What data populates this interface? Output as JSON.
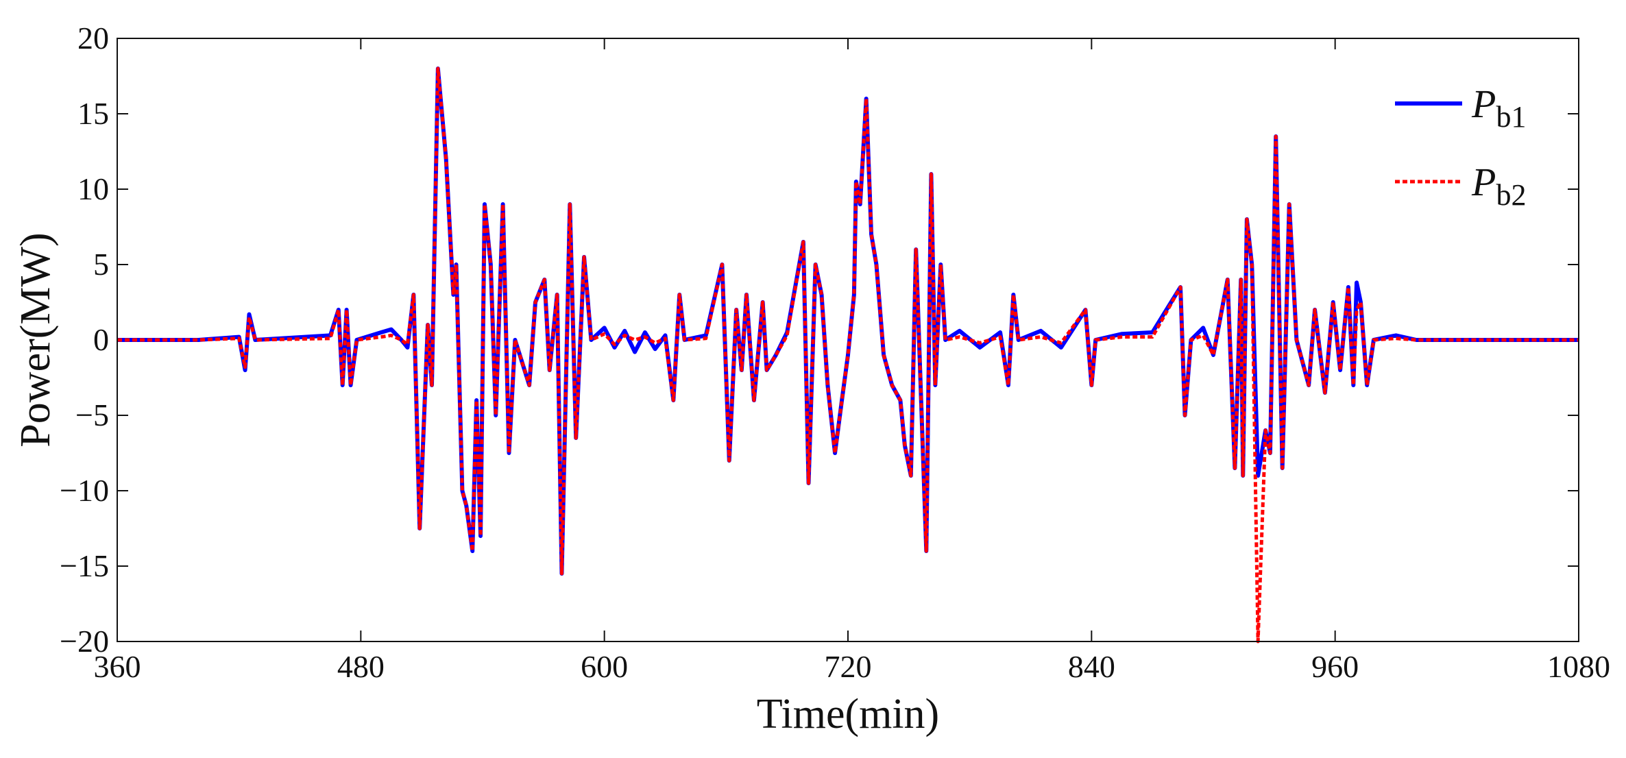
{
  "chart_data": {
    "type": "line",
    "x_label": "Time(min)",
    "y_label": "Power(MW)",
    "xlim": [
      360,
      1080
    ],
    "xticks": [
      360,
      480,
      600,
      720,
      840,
      960,
      1080
    ],
    "ylim": [
      -20,
      20
    ],
    "yticks": [
      {
        "value": -20,
        "label": "−20"
      },
      {
        "value": -15,
        "label": "−15"
      },
      {
        "value": -10,
        "label": "−10"
      },
      {
        "value": -5,
        "label": "−5"
      },
      0,
      5,
      10,
      15,
      20
    ],
    "legend": "upper right",
    "x": [
      360,
      400,
      420,
      423,
      425,
      428,
      465,
      469,
      471,
      473,
      475,
      478,
      490,
      495,
      500,
      503,
      506,
      509,
      513,
      515,
      518,
      522,
      525.6,
      527,
      530,
      532,
      535,
      537,
      539,
      541,
      544,
      546.5,
      550,
      553,
      556,
      563,
      566,
      570.5,
      573,
      576.7,
      579,
      583,
      586,
      590,
      593.5,
      600,
      605,
      610,
      615,
      620,
      625,
      630,
      634,
      637,
      639.5,
      650,
      658,
      661.5,
      665,
      667.6,
      670,
      673.7,
      678,
      680,
      684.5,
      690,
      698,
      700.6,
      704,
      707,
      710,
      713.6,
      717,
      720,
      723,
      724,
      726,
      729,
      731.5,
      734,
      737.6,
      741.7,
      745.8,
      748,
      751,
      753.5,
      758.6,
      761,
      763,
      765.7,
      768,
      775,
      785,
      795,
      799,
      801.5,
      804,
      815,
      825,
      837,
      840,
      842,
      855,
      870,
      883.8,
      886,
      889,
      895,
      900,
      907,
      910.6,
      913.6,
      914.6,
      916.5,
      919,
      922,
      925.7,
      928,
      930.8,
      934,
      937.4,
      941,
      947,
      950,
      952.7,
      955,
      959,
      962.5,
      966.5,
      969,
      970.6,
      972.6,
      975.7,
      979,
      990,
      1000,
      1080
    ],
    "series": [
      {
        "name": "Pb1",
        "color": "#0000ff",
        "style": "solid",
        "values": [
          0,
          0,
          0.2,
          -2,
          1.7,
          0,
          0.3,
          2,
          -3,
          2,
          -3,
          0,
          0.5,
          0.7,
          0,
          -0.5,
          3,
          -12.5,
          1,
          -3,
          18,
          12,
          3,
          5,
          -10,
          -11,
          -14,
          -4,
          -13,
          9,
          5,
          -5,
          9,
          -7.5,
          0,
          -3,
          2.5,
          4,
          -2,
          3,
          -15.5,
          9,
          -6.5,
          5.5,
          0,
          0.8,
          -0.5,
          0.6,
          -0.8,
          0.5,
          -0.6,
          0.3,
          -4,
          3,
          0,
          0.3,
          5,
          -8,
          2,
          -2,
          3,
          -4,
          2.5,
          -2,
          -1,
          0.5,
          6.5,
          -9.5,
          5,
          3,
          -3,
          -7.5,
          -4,
          -1,
          3,
          10.5,
          9,
          16,
          7,
          5,
          -1,
          -3,
          -4,
          -7,
          -9,
          6,
          -14,
          11,
          -3,
          5,
          0,
          0.6,
          -0.5,
          0.5,
          -3,
          3,
          0,
          0.6,
          -0.5,
          2,
          -3,
          0,
          0.4,
          0.5,
          3.5,
          -5,
          0,
          0.8,
          -1,
          4,
          -8.5,
          4,
          -9,
          8,
          5,
          -9,
          -6,
          -7.5,
          13.5,
          -8.5,
          9,
          0,
          -3,
          2,
          -1,
          -3.5,
          2.5,
          -2,
          3.5,
          -3,
          3.8,
          2.5,
          -3,
          0,
          0.3,
          0,
          0
        ]
      },
      {
        "name": "Pb2",
        "color": "#ff0000",
        "style": "dashed",
        "values": [
          0,
          0,
          0.1,
          -1.8,
          1.5,
          0,
          0.1,
          2,
          -3,
          2,
          -3,
          0,
          0.2,
          0.3,
          0,
          -0.3,
          3,
          -12.5,
          1,
          -3,
          18,
          12,
          3,
          5,
          -10,
          -11,
          -14,
          -4,
          -13,
          9,
          5,
          -5,
          9,
          -7.5,
          0,
          -3,
          2.5,
          4,
          -2,
          3,
          -15.5,
          9,
          -6.5,
          5.5,
          0,
          0.4,
          -0.3,
          0.3,
          0,
          0.2,
          -0.2,
          0.1,
          -4,
          3,
          0,
          0.1,
          5,
          -8,
          2,
          -2,
          3,
          -4,
          2.5,
          -2,
          -1,
          0.3,
          6.5,
          -9.5,
          5,
          3,
          -3,
          -7.5,
          -4,
          -1,
          3,
          10.5,
          9,
          16,
          7,
          5,
          -1,
          -3,
          -4,
          -7,
          -9,
          6,
          -14,
          11,
          -3,
          5,
          0,
          0.2,
          -0.2,
          0.2,
          -3,
          3,
          0,
          0.2,
          -0.2,
          2,
          -3,
          0,
          0.2,
          0.2,
          3.5,
          -5,
          0,
          0.3,
          -1,
          4,
          -8.5,
          4,
          -9,
          8,
          5,
          -20,
          -6,
          -7.5,
          13.5,
          -8.5,
          9,
          0,
          -3,
          2,
          -1,
          -3.5,
          2.5,
          -2,
          3.5,
          -3,
          2,
          2.5,
          -3,
          0,
          0.1,
          0,
          0
        ]
      }
    ]
  }
}
